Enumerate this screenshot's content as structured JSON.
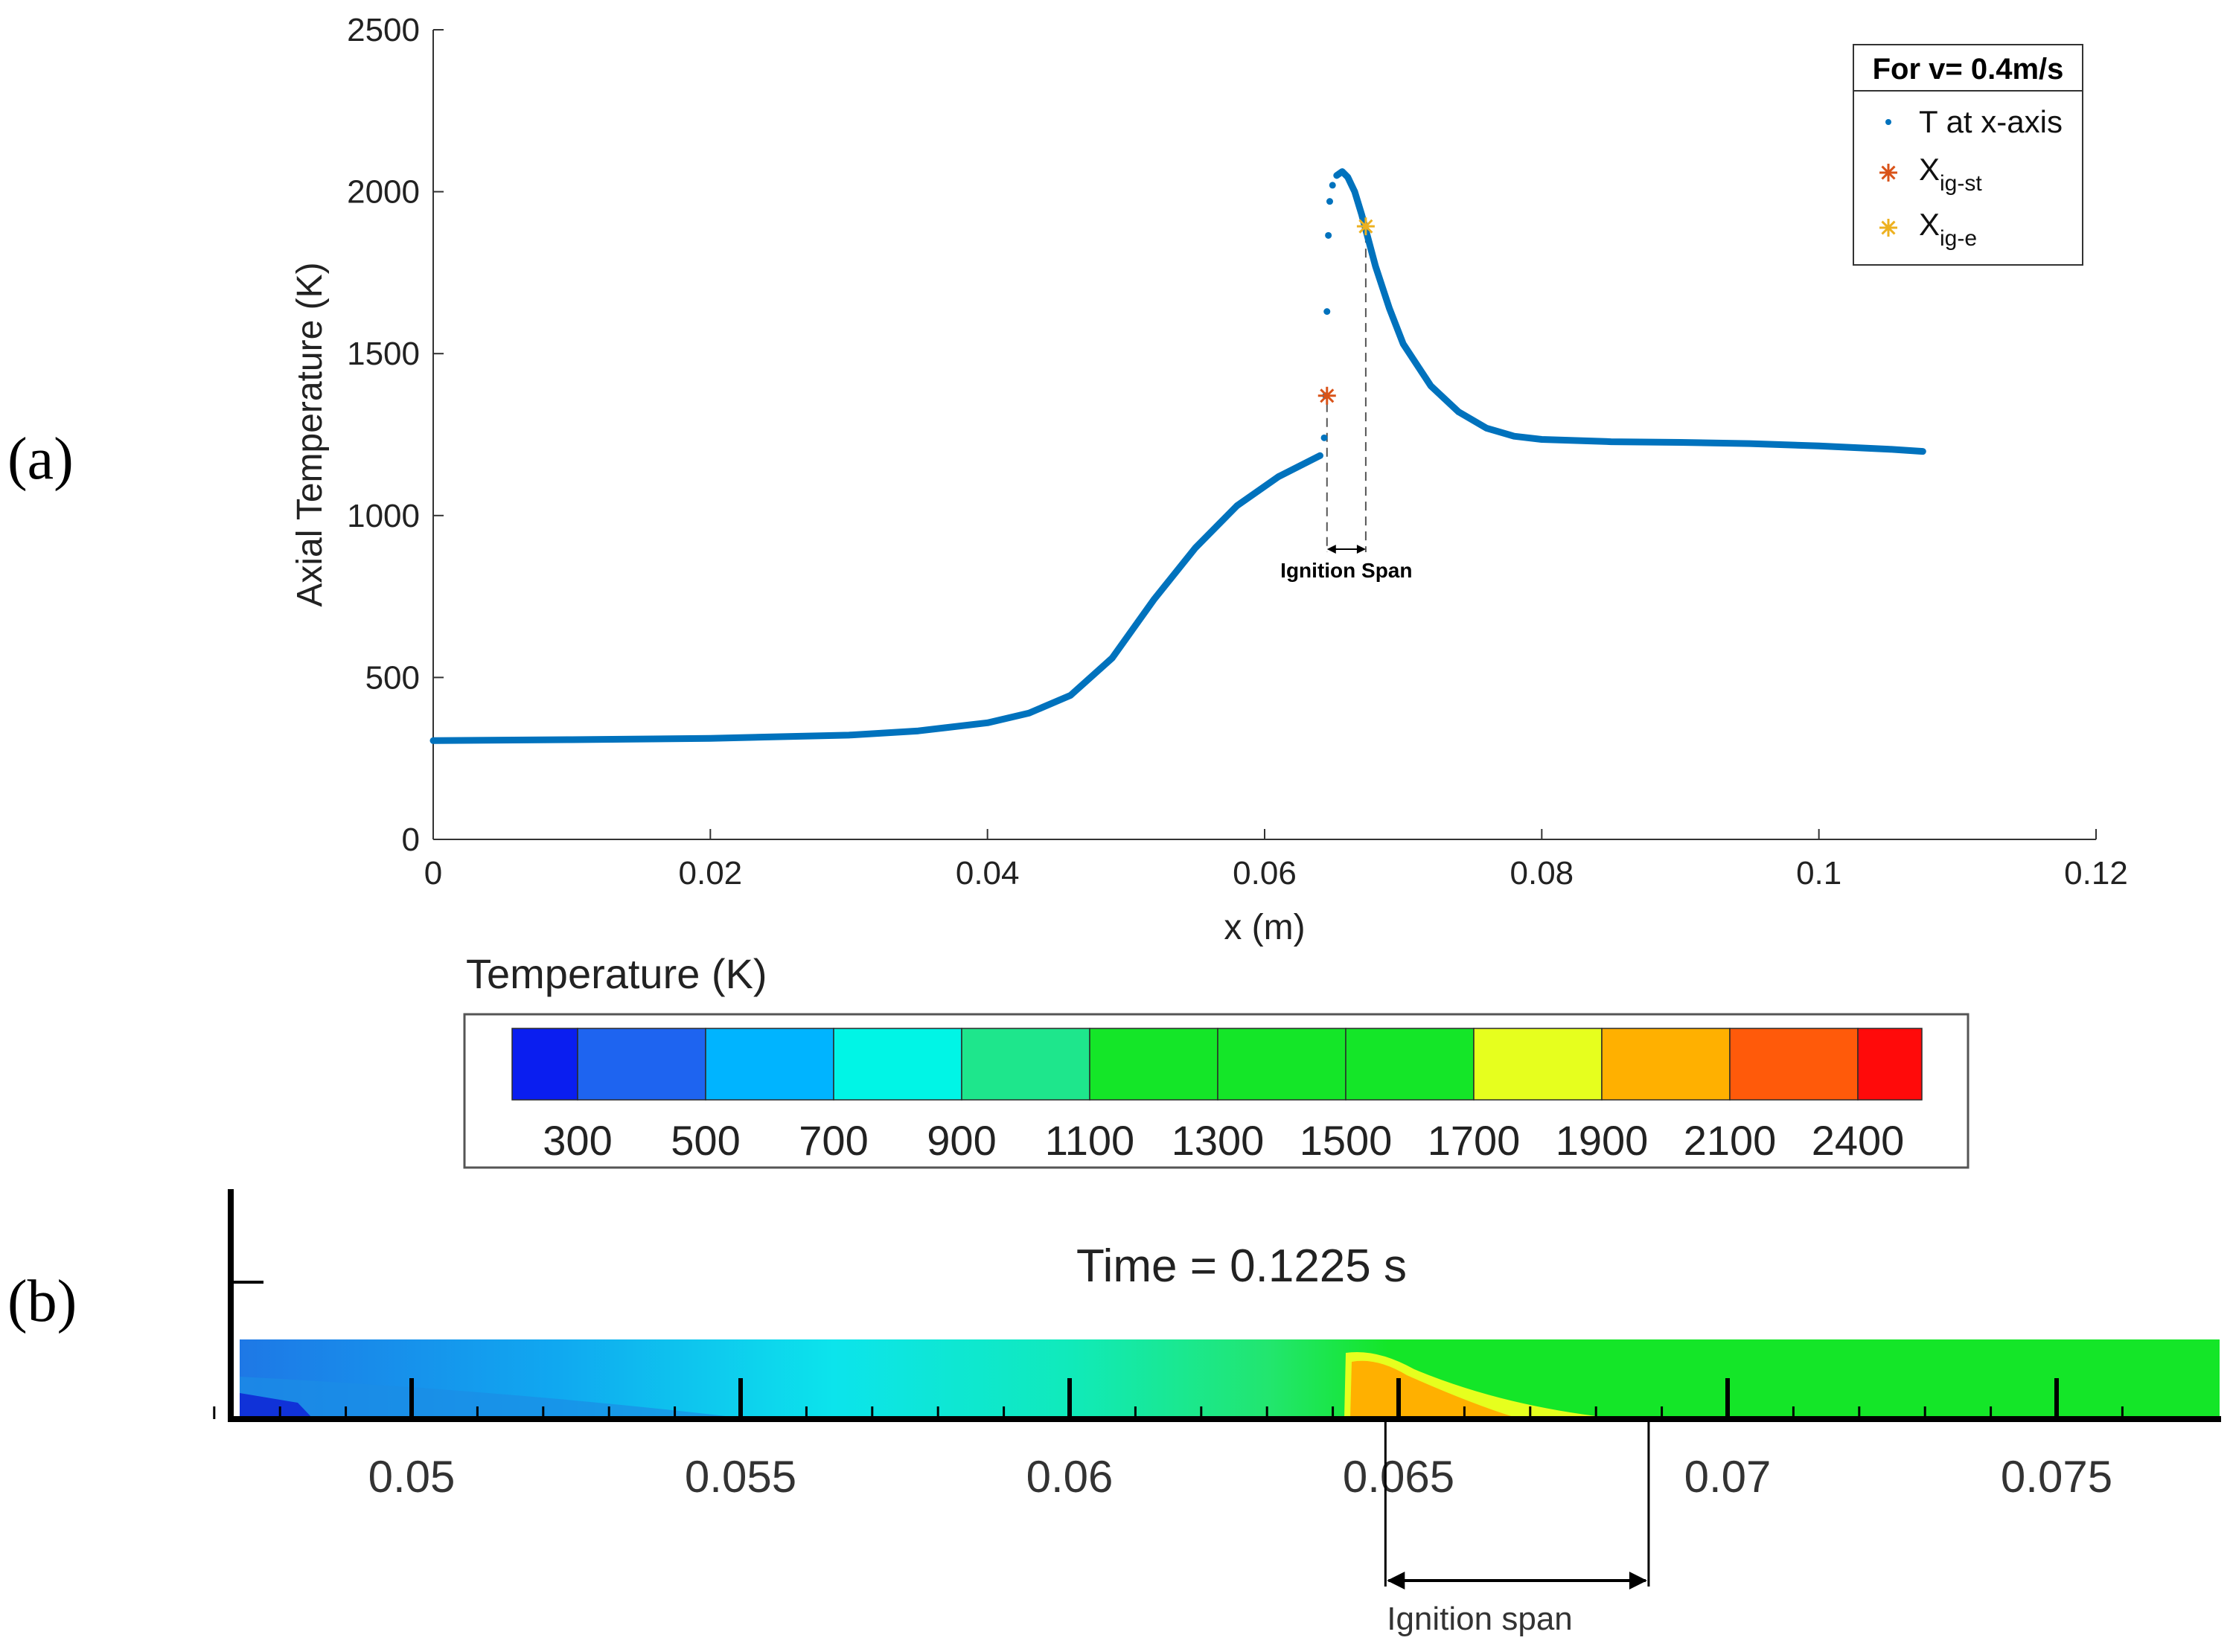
{
  "panels": {
    "a_label": "(a)",
    "b_label": "(b)"
  },
  "chart_data": [
    {
      "type": "scatter",
      "title": "",
      "xlabel": "x (m)",
      "ylabel": "Axial Temperature (K)",
      "xlim": [
        0,
        0.12
      ],
      "ylim": [
        0,
        2500
      ],
      "xticks": [
        "0",
        "0.02",
        "0.04",
        "0.06",
        "0.08",
        "0.1",
        "0.12"
      ],
      "xtick_values": [
        0,
        0.02,
        0.04,
        0.06,
        0.08,
        0.1,
        0.12
      ],
      "yticks": [
        "0",
        "500",
        "1000",
        "1500",
        "2000",
        "2500"
      ],
      "ytick_values": [
        0,
        500,
        1000,
        1500,
        2000,
        2500
      ],
      "legend_title": "For v= 0.4m/s",
      "legend_position": "top-right",
      "series": [
        {
          "name": "T at x-axis",
          "color": "#0072bd",
          "x": [
            0,
            0.01,
            0.02,
            0.03,
            0.035,
            0.04,
            0.043,
            0.046,
            0.049,
            0.052,
            0.055,
            0.058,
            0.061,
            0.064
          ],
          "y": [
            305,
            308,
            312,
            322,
            335,
            360,
            390,
            445,
            560,
            740,
            900,
            1030,
            1120,
            1185
          ],
          "jump_points": {
            "x": [
              0.0643,
              0.0644,
              0.0645,
              0.0646,
              0.0647,
              0.0649
            ],
            "y": [
              1240,
              1370,
              1630,
              1865,
              1970,
              2020
            ]
          },
          "x2": [
            0.0652,
            0.0656,
            0.066,
            0.0665,
            0.067,
            0.068,
            0.069,
            0.07,
            0.072,
            0.074,
            0.076,
            0.078,
            0.08,
            0.085,
            0.09,
            0.095,
            0.1,
            0.105,
            0.1075
          ],
          "y2": [
            2050,
            2062,
            2045,
            2000,
            1930,
            1770,
            1640,
            1530,
            1400,
            1320,
            1270,
            1245,
            1235,
            1228,
            1226,
            1222,
            1215,
            1205,
            1198
          ]
        },
        {
          "name": "X",
          "subscript": "ig-st",
          "color": "#d95319",
          "marker": "asterisk",
          "x": [
            0.0645
          ],
          "y": [
            1370
          ]
        },
        {
          "name": "X",
          "subscript": "ig-e",
          "color": "#edb120",
          "marker": "asterisk",
          "x": [
            0.0673
          ],
          "y": [
            1893
          ]
        }
      ],
      "annotation": {
        "text": "Ignition Span",
        "x_start": 0.0645,
        "x_end": 0.0673
      }
    },
    {
      "type": "heatmap",
      "colorbar_title": "Temperature (K)",
      "colorbar_ticks": [
        "300",
        "500",
        "700",
        "900",
        "1100",
        "1300",
        "1500",
        "1700",
        "1900",
        "2100",
        "2400"
      ],
      "colorbar_colors": [
        "#0a1ef0",
        "#1e64f0",
        "#00b4ff",
        "#00f5e6",
        "#1ee68c",
        "#14e628",
        "#14e628",
        "#14e628",
        "#e6ff1e",
        "#ffb000",
        "#ff5a0a",
        "#ff0a0a"
      ],
      "time_label": "Time = 0.1225 s",
      "xticks": [
        "0.05",
        "0.055",
        "0.06",
        "0.065",
        "0.07",
        "0.075"
      ],
      "xtick_values": [
        0.05,
        0.055,
        0.06,
        0.065,
        0.07,
        0.075
      ],
      "span_label": "Ignition span",
      "span_start": 0.0648,
      "span_end": 0.0688
    }
  ]
}
